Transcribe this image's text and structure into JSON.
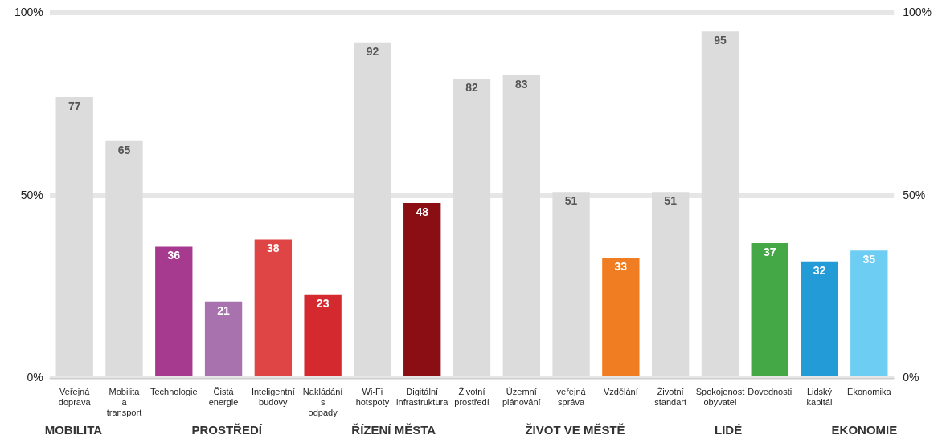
{
  "chart_data": {
    "type": "bar",
    "categories": [
      "Veřejná doprava",
      "Mobilita a transport",
      "Technologie",
      "Čistá energie",
      "Inteligentní budovy",
      "Nakládání s odpady",
      "Wi-Fi hotspoty",
      "Digitální infrastruktura",
      "Životní prostředí",
      "Územní plánování",
      "veřejná správa",
      "Vzdělání",
      "Životní standart",
      "Spokojenost obyvatel",
      "Dovednosti",
      "Lidský kapitál",
      "Ekonomika"
    ],
    "values": [
      77,
      65,
      36,
      21,
      38,
      23,
      92,
      48,
      82,
      83,
      51,
      33,
      51,
      95,
      37,
      32,
      35
    ],
    "colors": [
      "#dcdcdc",
      "#dcdcdc",
      "#a63a8f",
      "#a872ae",
      "#e04545",
      "#d42a2f",
      "#dcdcdc",
      "#8b0e15",
      "#dcdcdc",
      "#dcdcdc",
      "#dcdcdc",
      "#f07d22",
      "#dcdcdc",
      "#dcdcdc",
      "#43a845",
      "#239bd6",
      "#6dcdf2"
    ],
    "ylim": [
      0,
      100
    ],
    "yticks": [
      {
        "value": 0,
        "label": "0%"
      },
      {
        "value": 50,
        "label": "50%"
      },
      {
        "value": 100,
        "label": "100%"
      }
    ],
    "y2lim": [
      0,
      100
    ],
    "y2ticks": [
      {
        "value": 0,
        "label": "0%"
      },
      {
        "value": 50,
        "label": "50%"
      },
      {
        "value": 100,
        "label": "100%"
      }
    ],
    "grid": "y",
    "legend": false,
    "data_labels": true,
    "annotations": [
      "MOBILITA",
      "PROSTŘEDÍ",
      "ŘÍZENÍ MĚSTA",
      "ŽIVOT VE MĚSTĚ",
      "LIDÉ",
      "EKONOMIE"
    ]
  }
}
